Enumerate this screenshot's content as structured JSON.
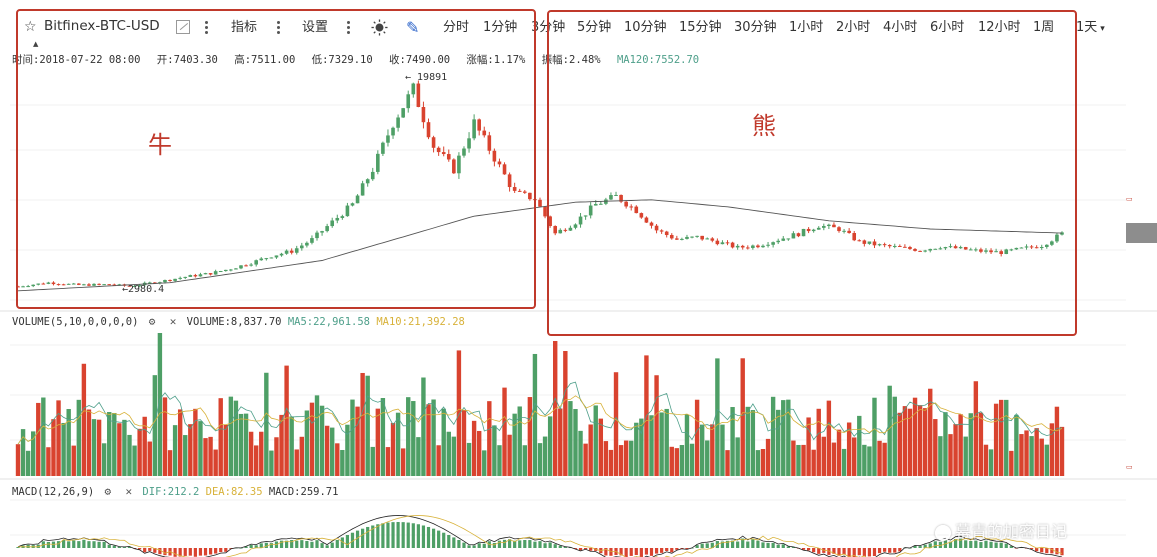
{
  "toolbar": {
    "symbol": "Bitfinex-BTC-USD",
    "indicators_label": "指标",
    "settings_label": "设置",
    "timeframes": [
      "分时",
      "1分钟",
      "3分钟",
      "5分钟",
      "10分钟",
      "15分钟",
      "30分钟",
      "1小时",
      "2小时",
      "4小时",
      "6小时",
      "12小时",
      "1周",
      "1天"
    ],
    "icons": [
      "star-icon",
      "chart-type-icon",
      "more-vertical-icon",
      "theme-sun-icon",
      "draw-pen-icon",
      "chevron-down-icon"
    ]
  },
  "info": {
    "time": "时间:2018-07-22 08:00",
    "open": "开:7403.30",
    "high": "高:7511.00",
    "low": "低:7329.10",
    "close": "收:7490.00",
    "change": "涨幅:1.17%",
    "amplitude": "振幅:2.48%",
    "ma120": "MA120:7552.70"
  },
  "volume_legend": {
    "label": "VOLUME(5,10,0,0,0,0)",
    "volume": "VOLUME:8,837.70",
    "ma5": "MA5:22,961.58",
    "ma10": "MA10:21,392.28"
  },
  "macd_legend": {
    "label": "MACD(12,26,9)",
    "dif": "DIF:212.2",
    "dea": "DEA:82.35",
    "macd": "MACD:259.71"
  },
  "annotations": {
    "bull": "牛",
    "bear": "熊",
    "high_marker": "← 19891",
    "low_marker": "←2980.4"
  },
  "watermark": "幕青的加密日记",
  "colors": {
    "up": "#4e9f66",
    "down": "#d9432f",
    "ma_line": "#555555",
    "annotation": "#c0392b",
    "ma5": "#4e9f8a",
    "ma10": "#d8b23a"
  },
  "chart_data": {
    "type": "candlestick",
    "title": "Bitfinex-BTC-USD",
    "high": 19891,
    "low": 2980.4,
    "price_path": [
      [
        0,
        2980
      ],
      [
        6,
        3300
      ],
      [
        12,
        3100
      ],
      [
        18,
        3150
      ],
      [
        22,
        3000
      ],
      [
        28,
        3400
      ],
      [
        33,
        3800
      ],
      [
        38,
        4100
      ],
      [
        42,
        4500
      ],
      [
        46,
        5000
      ],
      [
        50,
        5600
      ],
      [
        54,
        6000
      ],
      [
        58,
        7000
      ],
      [
        62,
        8500
      ],
      [
        66,
        10000
      ],
      [
        70,
        13000
      ],
      [
        74,
        17000
      ],
      [
        78,
        19891
      ],
      [
        82,
        15000
      ],
      [
        86,
        13000
      ],
      [
        90,
        17000
      ],
      [
        94,
        14000
      ],
      [
        98,
        11000
      ],
      [
        102,
        10500
      ],
      [
        106,
        7500
      ],
      [
        110,
        8500
      ],
      [
        114,
        10000
      ],
      [
        118,
        10700
      ],
      [
        122,
        9500
      ],
      [
        126,
        7800
      ],
      [
        130,
        7000
      ],
      [
        134,
        7200
      ],
      [
        138,
        6800
      ],
      [
        142,
        6300
      ],
      [
        146,
        6500
      ],
      [
        150,
        7000
      ],
      [
        154,
        7500
      ],
      [
        158,
        8200
      ],
      [
        162,
        7900
      ],
      [
        166,
        6800
      ],
      [
        170,
        6500
      ],
      [
        174,
        6300
      ],
      [
        178,
        6100
      ],
      [
        182,
        6400
      ],
      [
        186,
        6200
      ],
      [
        190,
        6000
      ],
      [
        194,
        5900
      ],
      [
        198,
        6200
      ],
      [
        202,
        6500
      ],
      [
        206,
        7490
      ]
    ],
    "ma120_path": [
      [
        0,
        2600
      ],
      [
        30,
        3300
      ],
      [
        60,
        5200
      ],
      [
        90,
        9000
      ],
      [
        110,
        10200
      ],
      [
        125,
        10400
      ],
      [
        140,
        9800
      ],
      [
        160,
        8600
      ],
      [
        180,
        7900
      ],
      [
        206,
        7552.7
      ]
    ],
    "volume": {
      "ma5": 22961.58,
      "ma10": 21392.28,
      "last": 8837.7
    },
    "macd": {
      "dif": 212.2,
      "dea": 82.35,
      "macd": 259.71
    }
  }
}
